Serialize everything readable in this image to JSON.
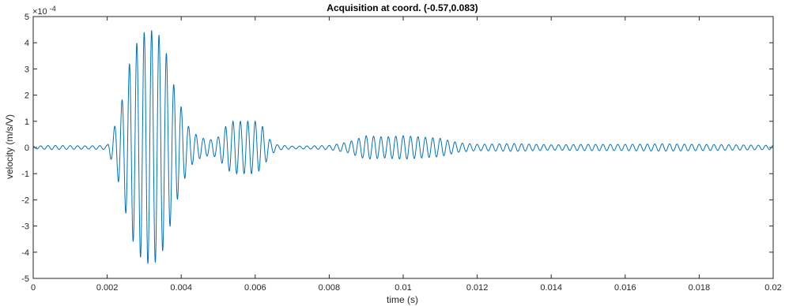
{
  "chart_data": {
    "type": "line",
    "title": "Acquisition at coord. (-0.57,0.083)",
    "xlabel": "time (s)",
    "ylabel": "velocity (m/s/V)",
    "y_exponent_label": "×10",
    "y_exponent_power": "-4",
    "xlim": [
      0,
      0.02
    ],
    "ylim": [
      -0.0005,
      0.0005
    ],
    "xticks": [
      0,
      0.002,
      0.004,
      0.006,
      0.008,
      0.01,
      0.012,
      0.014,
      0.016,
      0.018,
      0.02
    ],
    "xtick_labels": [
      "0",
      "0.002",
      "0.004",
      "0.006",
      "0.008",
      "0.01",
      "0.012",
      "0.014",
      "0.016",
      "0.018",
      "0.02"
    ],
    "yticks": [
      -0.0005,
      -0.0004,
      -0.0003,
      -0.0002,
      -0.0001,
      0,
      0.0001,
      0.0002,
      0.0003,
      0.0004,
      0.0005
    ],
    "ytick_labels": [
      "-5",
      "-4",
      "-3",
      "-2",
      "-1",
      "0",
      "1",
      "2",
      "3",
      "4",
      "5"
    ],
    "grid": false,
    "line_color": "#0072bd",
    "series": [
      {
        "x": [
          0,
          0.0005,
          0.001,
          0.0015,
          0.002,
          0.0022,
          0.0024,
          0.0026,
          0.0028,
          0.003,
          0.0032,
          0.0034,
          0.0036,
          0.0038,
          0.004,
          0.0042,
          0.0044,
          0.0046,
          0.0048,
          0.005,
          0.0052,
          0.0054,
          0.0056,
          0.0058,
          0.006,
          0.0062,
          0.0064,
          0.0066,
          0.007,
          0.0075,
          0.008,
          0.0085,
          0.009,
          0.0095,
          0.01,
          0.0105,
          0.011,
          0.0115,
          0.012,
          0.013,
          0.014,
          0.015,
          0.016,
          0.017,
          0.018,
          0.019,
          0.02
        ],
        "y": [
          5e-06,
          8e-06,
          7e-06,
          6e-06,
          8e-06,
          8e-05,
          0.00018,
          0.00032,
          0.000399,
          0.00044,
          0.000448,
          0.00043,
          0.00036,
          0.00024,
          0.000155,
          8e-05,
          5e-05,
          3.5e-05,
          3e-05,
          4e-05,
          8e-05,
          0.0001,
          0.0001,
          0.0001,
          0.0001,
          8e-05,
          3e-05,
          1e-05,
          5e-06,
          6e-06,
          8e-06,
          2e-05,
          4.5e-05,
          4e-05,
          4.5e-05,
          4e-05,
          3.5e-05,
          1.8e-05,
          1.2e-05,
          1.5e-05,
          1e-05,
          1.2e-05,
          1.2e-05,
          1.4e-05,
          1.2e-05,
          1e-05,
          8e-06
        ],
        "carrier_hz": 5000
      }
    ]
  }
}
